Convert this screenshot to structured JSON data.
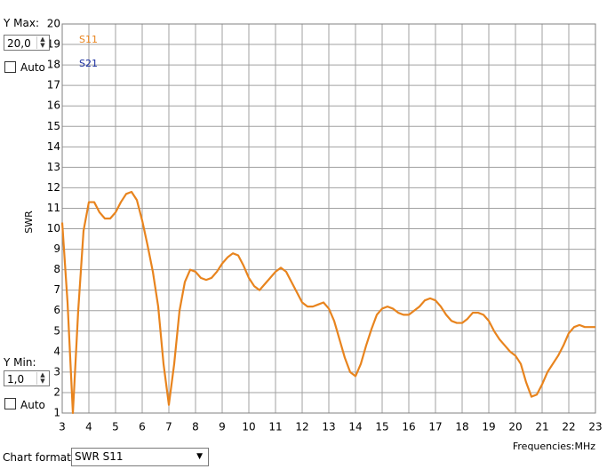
{
  "controls": {
    "ymax_label": "Y Max:",
    "ymax_value": "20,0",
    "ymax_auto": "Auto",
    "ymin_label": "Y Min:",
    "ymin_value": "1,0",
    "ymin_auto": "Auto",
    "format_label": "Chart format:",
    "format_value": "SWR S11"
  },
  "chart_data": {
    "type": "line",
    "ylabel": "SWR",
    "xlabel": "Frequencies:MHz",
    "legend": [
      {
        "name": "S11",
        "color": "#e8841e"
      },
      {
        "name": "S21",
        "color": "#1a2ea0"
      }
    ],
    "xlim": [
      3,
      23
    ],
    "ylim": [
      1,
      20
    ],
    "xticks": [
      3,
      4,
      5,
      6,
      7,
      8,
      9,
      10,
      11,
      12,
      13,
      14,
      15,
      16,
      17,
      18,
      19,
      20,
      21,
      22,
      23
    ],
    "yticks": [
      1,
      2,
      3,
      4,
      5,
      6,
      7,
      8,
      9,
      10,
      11,
      12,
      13,
      14,
      15,
      16,
      17,
      18,
      19,
      20
    ],
    "grid": true,
    "x": [
      3.0,
      3.2,
      3.4,
      3.6,
      3.8,
      4.0,
      4.2,
      4.4,
      4.6,
      4.8,
      5.0,
      5.2,
      5.4,
      5.6,
      5.8,
      6.0,
      6.2,
      6.4,
      6.6,
      6.8,
      7.0,
      7.2,
      7.4,
      7.6,
      7.8,
      8.0,
      8.2,
      8.4,
      8.6,
      8.8,
      9.0,
      9.2,
      9.4,
      9.6,
      9.8,
      10.0,
      10.2,
      10.4,
      10.6,
      10.8,
      11.0,
      11.2,
      11.4,
      11.6,
      11.8,
      12.0,
      12.2,
      12.4,
      12.6,
      12.8,
      13.0,
      13.2,
      13.4,
      13.6,
      13.8,
      14.0,
      14.2,
      14.4,
      14.6,
      14.8,
      15.0,
      15.2,
      15.4,
      15.6,
      15.8,
      16.0,
      16.2,
      16.4,
      16.6,
      16.8,
      17.0,
      17.2,
      17.4,
      17.6,
      17.8,
      18.0,
      18.2,
      18.4,
      18.6,
      18.8,
      19.0,
      19.2,
      19.4,
      19.6,
      19.8,
      20.0,
      20.2,
      20.4,
      20.6,
      20.8,
      21.0,
      21.2,
      21.4,
      21.6,
      21.8,
      22.0,
      22.2,
      22.4,
      22.6,
      22.8,
      23.0
    ],
    "series": [
      {
        "name": "S11",
        "color": "#e8841e",
        "values": [
          10.3,
          6.4,
          1.0,
          6.0,
          9.9,
          11.3,
          11.3,
          10.8,
          10.5,
          10.5,
          10.8,
          11.3,
          11.7,
          11.8,
          11.4,
          10.4,
          9.2,
          7.9,
          6.2,
          3.4,
          1.4,
          3.4,
          6.0,
          7.4,
          8.0,
          7.9,
          7.6,
          7.5,
          7.6,
          7.9,
          8.3,
          8.6,
          8.8,
          8.7,
          8.2,
          7.6,
          7.2,
          7.0,
          7.3,
          7.6,
          7.9,
          8.1,
          7.9,
          7.4,
          6.9,
          6.4,
          6.2,
          6.2,
          6.3,
          6.4,
          6.1,
          5.5,
          4.6,
          3.7,
          3.0,
          2.8,
          3.4,
          4.3,
          5.1,
          5.8,
          6.1,
          6.2,
          6.1,
          5.9,
          5.8,
          5.8,
          6.0,
          6.2,
          6.5,
          6.6,
          6.5,
          6.2,
          5.8,
          5.5,
          5.4,
          5.4,
          5.6,
          5.9,
          5.9,
          5.8,
          5.5,
          5.0,
          4.6,
          4.3,
          4.0,
          3.8,
          3.4,
          2.5,
          1.8,
          1.9,
          2.4,
          3.0,
          3.4,
          3.8,
          4.3,
          4.9,
          5.2,
          5.3,
          5.2,
          5.2,
          5.2
        ]
      }
    ]
  }
}
